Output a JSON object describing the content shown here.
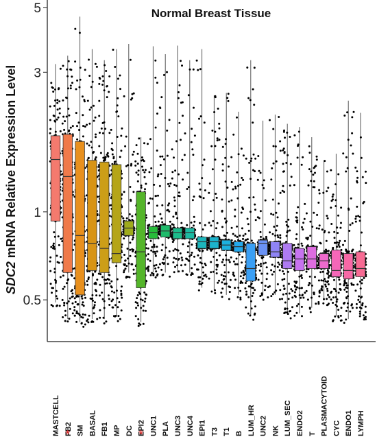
{
  "chart_data": {
    "type": "box",
    "title": "Normal Breast Tissue",
    "ylabel_italic": "SDC2",
    "ylabel_rest": " mRNA Relative Expression Level",
    "xlabel": "",
    "yscale": "log",
    "ylim": [
      0.36,
      5.3
    ],
    "yticks": [
      0.5,
      1,
      3,
      5
    ],
    "ytick_labels": [
      "0.5",
      "1",
      "3",
      "5"
    ],
    "grid": false,
    "legend": false,
    "starred": [
      "FB2",
      "EPI2"
    ],
    "star_color": "#e02020",
    "categories": [
      "MASTCELL",
      "FB2",
      "SM",
      "BASAL",
      "FB1",
      "MP",
      "DC",
      "EPI2",
      "UNC1",
      "PLA",
      "UNC3",
      "UNC4",
      "EPI1",
      "T3",
      "T1",
      "B",
      "LUM_HR",
      "UNC2",
      "NK",
      "LUM_SEC",
      "ENDO2",
      "T",
      "PLASMACYTOID",
      "CYC",
      "ENDO1",
      "LYMPH"
    ],
    "colors": [
      "#f47a6e",
      "#f07a4a",
      "#e8901e",
      "#d89415",
      "#cc9e18",
      "#b5a518",
      "#9fab1c",
      "#54b52a",
      "#27bb3a",
      "#1ebb6a",
      "#1cbc8b",
      "#1cbaa2",
      "#1cb6bc",
      "#1cb3cc",
      "#1cb0de",
      "#22a8ec",
      "#3a9ff5",
      "#6a92f5",
      "#8f84f5",
      "#ae7bf2",
      "#c773ef",
      "#de6de0",
      "#ef6acc",
      "#f567b8",
      "#f768a6",
      "#f76a93"
    ],
    "q1": [
      0.93,
      0.62,
      0.52,
      0.63,
      0.62,
      0.67,
      0.83,
      0.55,
      0.81,
      0.82,
      0.81,
      0.81,
      0.75,
      0.75,
      0.74,
      0.73,
      0.58,
      0.71,
      0.7,
      0.64,
      0.63,
      0.64,
      0.64,
      0.6,
      0.59,
      0.6
    ],
    "median": [
      1.51,
      1.32,
      0.83,
      0.78,
      0.75,
      0.72,
      0.88,
      0.73,
      0.85,
      0.86,
      0.85,
      0.85,
      0.79,
      0.79,
      0.77,
      0.76,
      0.64,
      0.78,
      0.73,
      0.68,
      0.69,
      0.69,
      0.68,
      0.63,
      0.63,
      0.64
    ],
    "q3": [
      1.82,
      1.84,
      1.74,
      1.5,
      1.48,
      1.45,
      0.93,
      1.17,
      0.89,
      0.9,
      0.88,
      0.88,
      0.82,
      0.82,
      0.8,
      0.79,
      0.78,
      0.8,
      0.79,
      0.78,
      0.75,
      0.76,
      0.72,
      0.74,
      0.72,
      0.73
    ],
    "wlo": [
      0.49,
      0.43,
      0.42,
      0.43,
      0.43,
      0.44,
      0.62,
      0.42,
      0.62,
      0.62,
      0.62,
      0.62,
      0.55,
      0.54,
      0.52,
      0.52,
      0.44,
      0.52,
      0.52,
      0.45,
      0.45,
      0.47,
      0.5,
      0.44,
      0.43,
      0.44
    ],
    "whi": [
      3.2,
      3.42,
      4.65,
      3.6,
      3.3,
      3.6,
      3.75,
      1.8,
      3.68,
      3.46,
      3.7,
      3.3,
      3.6,
      2.5,
      2.55,
      2.2,
      3.3,
      2.05,
      2.15,
      2.0,
      1.95,
      1.8,
      1.5,
      1.58,
      2.4,
      2.18
    ]
  }
}
